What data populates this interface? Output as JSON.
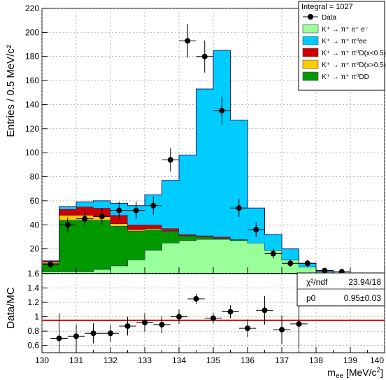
{
  "chart_data": [
    {
      "type": "bar",
      "stacked": true,
      "ylabel": "Entries / 0.5 MeV/c²",
      "ylim": [
        0,
        220
      ],
      "xlim": [
        130,
        140
      ],
      "bin_edges": [
        130.0,
        130.5,
        131.0,
        131.5,
        132.0,
        132.5,
        133.0,
        133.5,
        134.0,
        134.5,
        135.0,
        135.5,
        136.0,
        136.5,
        137.0,
        137.5,
        138.0,
        138.5,
        139.0
      ],
      "grid": true,
      "integral_label": "Integral = 1027",
      "legend": [
        {
          "key": "data",
          "label": "Data",
          "kind": "marker",
          "color": "#000000"
        },
        {
          "key": "pi_ee",
          "label": "K⁺ → π⁺ e⁺ e⁻",
          "kind": "box",
          "color": "#99ff99"
        },
        {
          "key": "pi0_ee",
          "label": "K⁺ → π⁺ π⁰ee",
          "kind": "box",
          "color": "#00ccff"
        },
        {
          "key": "pi0_d_lo",
          "label": "K⁺ → π⁺ π⁰D(x<0.5)",
          "kind": "box",
          "color": "#cc0000"
        },
        {
          "key": "pi0_d_hi",
          "label": "K⁺ → π⁺ π⁰D(x>0.5)",
          "kind": "box",
          "color": "#ffcc00"
        },
        {
          "key": "pi0_dd",
          "label": "K⁺ → π⁺ π⁰DD",
          "kind": "box",
          "color": "#009900"
        }
      ],
      "series": [
        {
          "key": "pi_ee",
          "name": "K⁺ → π⁺ e⁺ e⁻",
          "color": "#99ff99",
          "values": [
            1,
            1,
            1,
            3,
            6,
            11,
            19,
            25,
            27,
            28,
            28,
            27,
            25,
            19,
            11,
            5,
            1,
            0
          ]
        },
        {
          "key": "pi0_dd",
          "name": "K⁺ → π⁺ π⁰DD",
          "color": "#009900",
          "values": [
            7,
            43,
            43,
            41,
            33,
            24,
            17,
            10,
            4,
            2,
            1,
            1,
            0,
            0,
            0,
            0,
            0,
            0
          ]
        },
        {
          "key": "pi0_d_hi",
          "name": "K⁺ → π⁺ π⁰D(x>0.5)",
          "color": "#ffcc00",
          "values": [
            1,
            4,
            4,
            3,
            2,
            1,
            1,
            0,
            0,
            0,
            0,
            0,
            0,
            0,
            0,
            0,
            0,
            0
          ]
        },
        {
          "key": "pi0_d_lo",
          "name": "K⁺ → π⁺ π⁰D(x<0.5)",
          "color": "#cc0000",
          "values": [
            1,
            5,
            7,
            7,
            7,
            4,
            3,
            2,
            1,
            1,
            1,
            0,
            0,
            0,
            0,
            0,
            0,
            0
          ]
        },
        {
          "key": "pi0_ee",
          "name": "K⁺ → π⁺ π⁰ee",
          "color": "#00ccff",
          "values": [
            0,
            2,
            4,
            6,
            10,
            16,
            25,
            40,
            66,
            122,
            155,
            99,
            29,
            13,
            9,
            3,
            1,
            0
          ]
        }
      ],
      "data": {
        "name": "Data",
        "x": [
          130.25,
          130.75,
          131.25,
          131.75,
          132.25,
          132.75,
          133.25,
          133.75,
          134.25,
          134.75,
          135.25,
          135.75,
          136.25,
          136.75,
          137.25,
          137.75,
          138.25,
          138.75
        ],
        "y": [
          7,
          40,
          45,
          47,
          52,
          52,
          56,
          94,
          193,
          180,
          135,
          54,
          36,
          16,
          8,
          8,
          2,
          1
        ],
        "err": [
          2.6,
          6.3,
          6.7,
          6.9,
          7.2,
          7.2,
          7.5,
          9.7,
          13.9,
          13.4,
          11.6,
          7.3,
          6.0,
          4.0,
          2.8,
          2.8,
          1.4,
          1.0
        ]
      },
      "yticks": [
        20,
        40,
        60,
        80,
        100,
        120,
        140,
        160,
        180,
        200,
        220
      ]
    },
    {
      "type": "scatter",
      "ylabel": "Data/MC",
      "xlabel": "m_ee [MeV/c²]",
      "ylim": [
        0.5,
        1.6
      ],
      "xlim": [
        130,
        140
      ],
      "xticks": [
        "130",
        "131",
        "132",
        "133",
        "134",
        "135",
        "136",
        "137",
        "138",
        "139",
        "140"
      ],
      "yticks": [
        "0.6",
        "0.8",
        "1",
        "1.2",
        "1.4",
        "1.6"
      ],
      "fit_line": 0.95,
      "fit_color": "#cc0000",
      "x": [
        130.5,
        131.0,
        131.5,
        132.0,
        132.5,
        133.0,
        133.5,
        134.0,
        134.5,
        135.0,
        135.5,
        136.0,
        136.5,
        137.0,
        137.5
      ],
      "y": [
        0.7,
        0.73,
        0.77,
        0.77,
        0.87,
        0.92,
        0.89,
        1.0,
        1.25,
        0.98,
        1.07,
        0.84,
        1.09,
        0.82,
        0.9
      ],
      "err": [
        0.35,
        0.16,
        0.14,
        0.12,
        0.13,
        0.13,
        0.12,
        0.1,
        0.07,
        0.07,
        0.09,
        0.12,
        0.2,
        0.2,
        0.35
      ],
      "stats": {
        "chi2_label": "χ²/ndf",
        "chi2_value": "23.94/18",
        "p0_label": "p0",
        "p0_value": "0.95±0.03"
      }
    }
  ]
}
